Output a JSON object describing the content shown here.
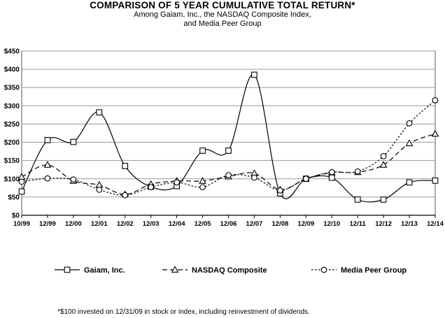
{
  "chart_data": {
    "type": "line",
    "title": "COMPARISON OF 5 YEAR CUMULATIVE TOTAL RETURN*",
    "subtitle_lines": [
      "Among Gaiam, Inc., the NASDAQ Composite Index,",
      "and Media Peer Group"
    ],
    "categories": [
      "10/99",
      "12/99",
      "12/00",
      "12/01",
      "12/02",
      "12/03",
      "12/04",
      "12/05",
      "12/06",
      "12/07",
      "12/08",
      "12/09",
      "12/10",
      "12/11",
      "12/12",
      "12/13",
      "12/14"
    ],
    "y_ticks": [
      "$0",
      "$50",
      "$100",
      "$150",
      "$200",
      "$250",
      "$300",
      "$350",
      "$400",
      "$450"
    ],
    "ylim": [
      0,
      450
    ],
    "grid": true,
    "legend_position": "bottom",
    "series": [
      {
        "name": "Gaiam, Inc.",
        "marker": "square",
        "dash": "solid",
        "values": [
          65,
          206,
          201,
          282,
          135,
          78,
          80,
          177,
          177,
          385,
          60,
          100,
          103,
          43,
          43,
          90,
          95
        ]
      },
      {
        "name": "NASDAQ Composite",
        "marker": "triangle",
        "dash": "dashed",
        "values": [
          105,
          138,
          94,
          83,
          57,
          85,
          94,
          94,
          106,
          115,
          70,
          100,
          117,
          118,
          138,
          197,
          223
        ]
      },
      {
        "name": "Media Peer Group",
        "marker": "circle",
        "dash": "dotted",
        "values": [
          92,
          101,
          98,
          70,
          55,
          77,
          90,
          77,
          110,
          103,
          68,
          100,
          118,
          120,
          162,
          252,
          315
        ]
      }
    ],
    "footnote": "*$100 invested on 12/31/09 in stock or index, including reinvestment of dividends."
  },
  "colors": {
    "line": "#000000",
    "grid": "#9a9a9a",
    "plot_bg": "#ffffff"
  }
}
